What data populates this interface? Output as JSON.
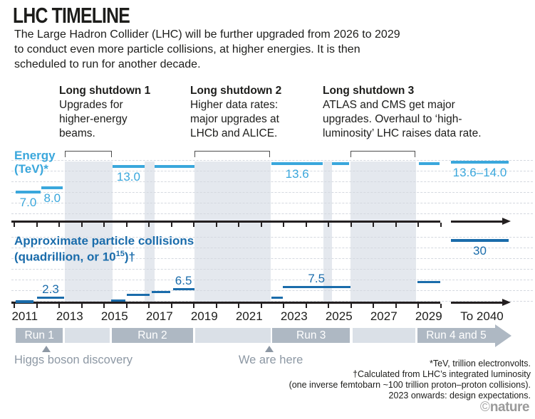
{
  "header": {
    "title": "LHC TIMELINE",
    "intro": "The Large Hadron Collider (LHC) will be further upgraded from 2026 to 2029\nto conduct even more particle collisions, at higher energies. It is then\nscheduled to run for another decade."
  },
  "shutdown_notes": [
    {
      "title": "Long shutdown 1",
      "body": "Upgrades for\nhigher-energy\nbeams."
    },
    {
      "title": "Long shutdown 2",
      "body": "Higher data rates:\nmajor upgrades at\nLHCb and ALICE."
    },
    {
      "title": "Long shutdown 3",
      "body": "ATLAS and CMS get major\nupgrades. Overhaul to ‘high-\nluminosity’ LHC raises data rate."
    }
  ],
  "chart_data": {
    "type": "timeline-step",
    "x_axis": {
      "start_year": 2011,
      "end_year": 2030,
      "year_labels": [
        "2011",
        "2013",
        "2015",
        "2017",
        "2019",
        "2021",
        "2023",
        "2025",
        "2027",
        "2029"
      ],
      "future_label": "To 2040",
      "grid": "dashed-horizontal"
    },
    "energy": {
      "label": "Energy\n(TeV)*",
      "unit": "TeV",
      "ylim": [
        0,
        14.5
      ],
      "segments": [
        {
          "from": 2011.1,
          "to": 2012.2,
          "value": 7.0,
          "label": "7.0"
        },
        {
          "from": 2012.25,
          "to": 2013.2,
          "value": 8.0,
          "label": "8.0"
        },
        {
          "from": 2015.4,
          "to": 2016.85,
          "value": 13.0,
          "label": "13.0"
        },
        {
          "from": 2017.3,
          "to": 2019.05,
          "value": 13.0
        },
        {
          "from": 2022.5,
          "to": 2024.78,
          "value": 13.6,
          "label": "13.6"
        },
        {
          "from": 2025.2,
          "to": 2025.95,
          "value": 13.6
        },
        {
          "from": 2029.05,
          "to": 2030.0,
          "value": 13.6
        },
        {
          "future": true,
          "value": 14.0,
          "label": "13.6–14.0"
        }
      ]
    },
    "collisions": {
      "label_line1": "Approximate particle collisions",
      "label_pre": "(quadrillion, or 10",
      "label_sup": "15",
      "label_post": ")†",
      "unit": "quadrillion collisions",
      "ylim": [
        0,
        31
      ],
      "segments": [
        {
          "from": 2011.1,
          "to": 2011.9,
          "value": 0.7,
          "thick": true
        },
        {
          "from": 2012.05,
          "to": 2013.25,
          "value": 2.3,
          "label": "2.3"
        },
        {
          "from": 2015.35,
          "to": 2016.0,
          "value": 1.0
        },
        {
          "from": 2016.05,
          "to": 2017.05,
          "value": 3.7
        },
        {
          "from": 2017.15,
          "to": 2018.0,
          "value": 5.1
        },
        {
          "from": 2018.1,
          "to": 2019.05,
          "value": 6.5,
          "label": "6.5"
        },
        {
          "from": 2022.5,
          "to": 2023.0,
          "value": 2.4
        },
        {
          "from": 2023.0,
          "to": 2026.0,
          "value": 7.5,
          "label": "7.5"
        },
        {
          "from": 2029.0,
          "to": 2030.0,
          "value": 10
        },
        {
          "future": true,
          "value": 30,
          "label": "30",
          "label_below": true,
          "thick": true
        }
      ]
    },
    "shutdown_bands": [
      {
        "from": 2013.3,
        "to": 2015.4,
        "bracket": true
      },
      {
        "from": 2016.85,
        "to": 2017.3
      },
      {
        "from": 2019.05,
        "to": 2022.45,
        "bracket": true
      },
      {
        "from": 2024.8,
        "to": 2025.2
      },
      {
        "from": 2026.0,
        "to": 2028.95,
        "bracket": true
      }
    ],
    "runs": [
      {
        "label": "Run 1",
        "from": 2011.1,
        "to": 2013.2,
        "kind": "run"
      },
      {
        "from": 2013.28,
        "to": 2015.3,
        "kind": "between"
      },
      {
        "label": "Run 2",
        "from": 2015.38,
        "to": 2019.0,
        "kind": "run"
      },
      {
        "from": 2019.1,
        "to": 2022.45,
        "kind": "between"
      },
      {
        "label": "Run 3",
        "from": 2022.52,
        "to": 2026.0,
        "kind": "run"
      },
      {
        "from": 2026.1,
        "to": 2028.9,
        "kind": "between"
      },
      {
        "label": "Run 4 and 5",
        "from": 2029.0,
        "kind": "run-arrow"
      }
    ],
    "markers": [
      {
        "label": "Higgs boson discovery",
        "year": 2012.45,
        "text_anchor": "left"
      },
      {
        "label": "We are here",
        "year": 2022.4,
        "text_anchor": "center"
      }
    ]
  },
  "footnotes": "*TeV, trillion electronvolts.\n†Calculated from LHC’s integrated luminosity\n(one inverse femtobarn ~100 trillion proton–proton collisions).\n2023 onwards: design expectations.",
  "credit": {
    "symbol": "©",
    "name": "nature"
  },
  "colors": {
    "energy_blue": "#3aa7dc",
    "collision_blue": "#1a6cab",
    "band_gray": "#e4e8ee",
    "run_dark": "#aeb8c3",
    "run_light": "#dae0e7",
    "muted_text": "#8d98a4",
    "axis": "#231f20",
    "gridline": "#d4d8df"
  }
}
